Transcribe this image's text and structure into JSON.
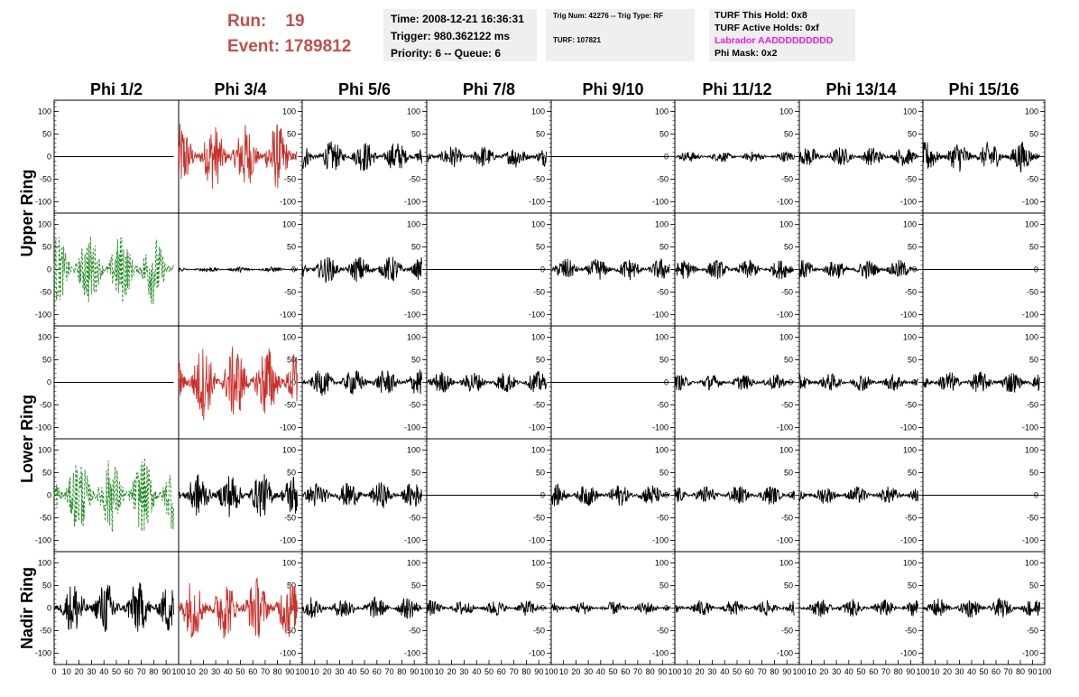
{
  "header": {
    "run_label": "Run:    19",
    "event_label": "Event: 1789812",
    "time": "Time: 2008-12-21 16:36:31",
    "trigger": "Trigger: 980.362122 ms",
    "priority": "Priority: 6 -- Queue: 6",
    "trig_num": "Trig Num: 42276 -- Trig Type: RF",
    "turf": "TURF: 107821",
    "turf_hold": "TURF This Hold: 0x8",
    "turf_active": "TURF Active Holds: 0xf",
    "labrador": "Labrador AADDDDDDDDD",
    "phi_mask": "Phi Mask: 0x2"
  },
  "colors": {
    "header_red": "#c0504d",
    "trace_black": "#000000",
    "trace_red": "#c8302a",
    "trace_green": "#228b22",
    "labrador_magenta": "#e020e0",
    "info_bg": "#efefef"
  },
  "chart_data": {
    "type": "line",
    "columns": [
      "Phi 1/2",
      "Phi 3/4",
      "Phi 5/6",
      "Phi 7/8",
      "Phi 9/10",
      "Phi 11/12",
      "Phi 13/14",
      "Phi 15/16"
    ],
    "ring_labels": [
      "Upper Ring",
      "Lower Ring",
      "Nadir Ring"
    ],
    "xlim": [
      0,
      100
    ],
    "ylim": [
      -125,
      125
    ],
    "x_ticks": [
      "0",
      "10",
      "20",
      "30",
      "40",
      "50",
      "60",
      "70",
      "80",
      "90",
      "100"
    ],
    "y_ticks": [
      "100",
      "50",
      "0",
      "-50",
      "-100"
    ],
    "amplitude_note": "approximate peak amplitude per panel in ADC units; waveforms are noise-like",
    "panels": [
      [
        {
          "amp": 0,
          "style": "flat"
        },
        {
          "amp": 75,
          "style": "red"
        },
        {
          "amp": 35,
          "style": "black"
        },
        {
          "amp": 25,
          "style": "black"
        },
        {
          "amp": 0,
          "style": "flat"
        },
        {
          "amp": 12,
          "style": "black"
        },
        {
          "amp": 22,
          "style": "black"
        },
        {
          "amp": 35,
          "style": "black"
        }
      ],
      [
        {
          "amp": 80,
          "style": "green"
        },
        {
          "amp": 6,
          "style": "black"
        },
        {
          "amp": 30,
          "style": "black"
        },
        {
          "amp": 0,
          "style": "flat"
        },
        {
          "amp": 25,
          "style": "black"
        },
        {
          "amp": 22,
          "style": "black"
        },
        {
          "amp": 22,
          "style": "black"
        },
        {
          "amp": 0,
          "style": "flat"
        }
      ],
      [
        {
          "amp": 0,
          "style": "flat"
        },
        {
          "amp": 85,
          "style": "red"
        },
        {
          "amp": 30,
          "style": "black"
        },
        {
          "amp": 25,
          "style": "black"
        },
        {
          "amp": 0,
          "style": "flat"
        },
        {
          "amp": 18,
          "style": "black"
        },
        {
          "amp": 20,
          "style": "black"
        },
        {
          "amp": 25,
          "style": "black"
        }
      ],
      [
        {
          "amp": 85,
          "style": "green"
        },
        {
          "amp": 50,
          "style": "black"
        },
        {
          "amp": 30,
          "style": "black"
        },
        {
          "amp": 0,
          "style": "flat"
        },
        {
          "amp": 25,
          "style": "black"
        },
        {
          "amp": 22,
          "style": "black"
        },
        {
          "amp": 20,
          "style": "black"
        },
        {
          "amp": 0,
          "style": "flat"
        }
      ],
      [
        {
          "amp": 60,
          "style": "black"
        },
        {
          "amp": 70,
          "style": "red"
        },
        {
          "amp": 25,
          "style": "black"
        },
        {
          "amp": 18,
          "style": "black"
        },
        {
          "amp": 15,
          "style": "black"
        },
        {
          "amp": 18,
          "style": "black"
        },
        {
          "amp": 20,
          "style": "black"
        },
        {
          "amp": 22,
          "style": "black"
        }
      ]
    ]
  }
}
